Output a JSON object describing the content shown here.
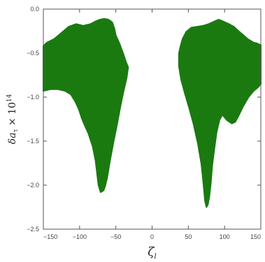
{
  "chart_data": {
    "type": "scatter",
    "title": "",
    "xlabel": "ζ_l",
    "ylabel": "δa_τ × 10^14",
    "xlabel_parts": {
      "main": "ζ",
      "sub": "l"
    },
    "ylabel_parts": {
      "prefix": "δa",
      "sub": "τ",
      "times": " × 10",
      "sup": "14"
    },
    "xlim": [
      -150,
      150
    ],
    "ylim": [
      -2.5,
      0.0
    ],
    "xticks": [
      -150,
      -100,
      -50,
      0,
      50,
      100,
      150
    ],
    "xtick_labels": [
      "−150",
      "−100",
      "−50",
      "0",
      "50",
      "100",
      "150"
    ],
    "yticks": [
      0.0,
      -0.5,
      -1.0,
      -1.5,
      -2.0,
      -2.5
    ],
    "ytick_labels": [
      "0.0",
      "−0.5",
      "−1.0",
      "−1.5",
      "−2.0",
      "−2.5"
    ],
    "grid": false,
    "legend": "none",
    "series": [
      {
        "color": "#1a7a10",
        "region_boundary": [
          [
            -150,
            -0.42
          ],
          [
            -145,
            -0.38
          ],
          [
            -135,
            -0.34
          ],
          [
            -125,
            -0.27
          ],
          [
            -115,
            -0.2
          ],
          [
            -105,
            -0.17
          ],
          [
            -95,
            -0.19
          ],
          [
            -85,
            -0.17
          ],
          [
            -78,
            -0.14
          ],
          [
            -72,
            -0.12
          ],
          [
            -66,
            -0.11
          ],
          [
            -60,
            -0.12
          ],
          [
            -55,
            -0.15
          ],
          [
            -52,
            -0.22
          ],
          [
            -50,
            -0.3
          ],
          [
            -45,
            -0.39
          ],
          [
            -40,
            -0.5
          ],
          [
            -36,
            -0.6
          ],
          [
            -33,
            -0.66
          ],
          [
            -35,
            -0.78
          ],
          [
            -40,
            -0.96
          ],
          [
            -44,
            -1.12
          ],
          [
            -48,
            -1.3
          ],
          [
            -53,
            -1.5
          ],
          [
            -58,
            -1.72
          ],
          [
            -62,
            -1.92
          ],
          [
            -65,
            -2.02
          ],
          [
            -67,
            -2.06
          ],
          [
            -71,
            -2.08
          ],
          [
            -74,
            -2.0
          ],
          [
            -76,
            -1.86
          ],
          [
            -78,
            -1.72
          ],
          [
            -82,
            -1.56
          ],
          [
            -88,
            -1.41
          ],
          [
            -93,
            -1.32
          ],
          [
            -97,
            -1.24
          ],
          [
            -101,
            -1.14
          ],
          [
            -106,
            -1.05
          ],
          [
            -112,
            -0.97
          ],
          [
            -120,
            -0.93
          ],
          [
            -130,
            -0.91
          ],
          [
            -140,
            -0.91
          ],
          [
            -150,
            -0.93
          ]
        ]
      },
      {
        "color": "#1a7a10",
        "region_boundary": [
          [
            37,
            -0.5
          ],
          [
            39,
            -0.43
          ],
          [
            42,
            -0.34
          ],
          [
            47,
            -0.26
          ],
          [
            54,
            -0.21
          ],
          [
            62,
            -0.2
          ],
          [
            70,
            -0.19
          ],
          [
            78,
            -0.17
          ],
          [
            86,
            -0.14
          ],
          [
            92,
            -0.12
          ],
          [
            98,
            -0.14
          ],
          [
            106,
            -0.17
          ],
          [
            113,
            -0.2
          ],
          [
            118,
            -0.24
          ],
          [
            125,
            -0.29
          ],
          [
            132,
            -0.34
          ],
          [
            140,
            -0.38
          ],
          [
            145,
            -0.39
          ],
          [
            150,
            -0.41
          ],
          [
            150,
            -0.85
          ],
          [
            146,
            -0.89
          ],
          [
            140,
            -0.93
          ],
          [
            133,
            -1.0
          ],
          [
            126,
            -1.1
          ],
          [
            120,
            -1.2
          ],
          [
            115,
            -1.28
          ],
          [
            110,
            -1.3
          ],
          [
            103,
            -1.26
          ],
          [
            97,
            -1.2
          ],
          [
            93,
            -1.26
          ],
          [
            89,
            -1.4
          ],
          [
            86,
            -1.58
          ],
          [
            83,
            -1.78
          ],
          [
            81,
            -1.98
          ],
          [
            79,
            -2.13
          ],
          [
            77,
            -2.22
          ],
          [
            75,
            -2.25
          ],
          [
            73,
            -2.18
          ],
          [
            71,
            -2.0
          ],
          [
            68,
            -1.76
          ],
          [
            63,
            -1.52
          ],
          [
            57,
            -1.3
          ],
          [
            51,
            -1.12
          ],
          [
            45,
            -0.95
          ],
          [
            40,
            -0.8
          ],
          [
            37,
            -0.65
          ]
        ]
      }
    ]
  }
}
